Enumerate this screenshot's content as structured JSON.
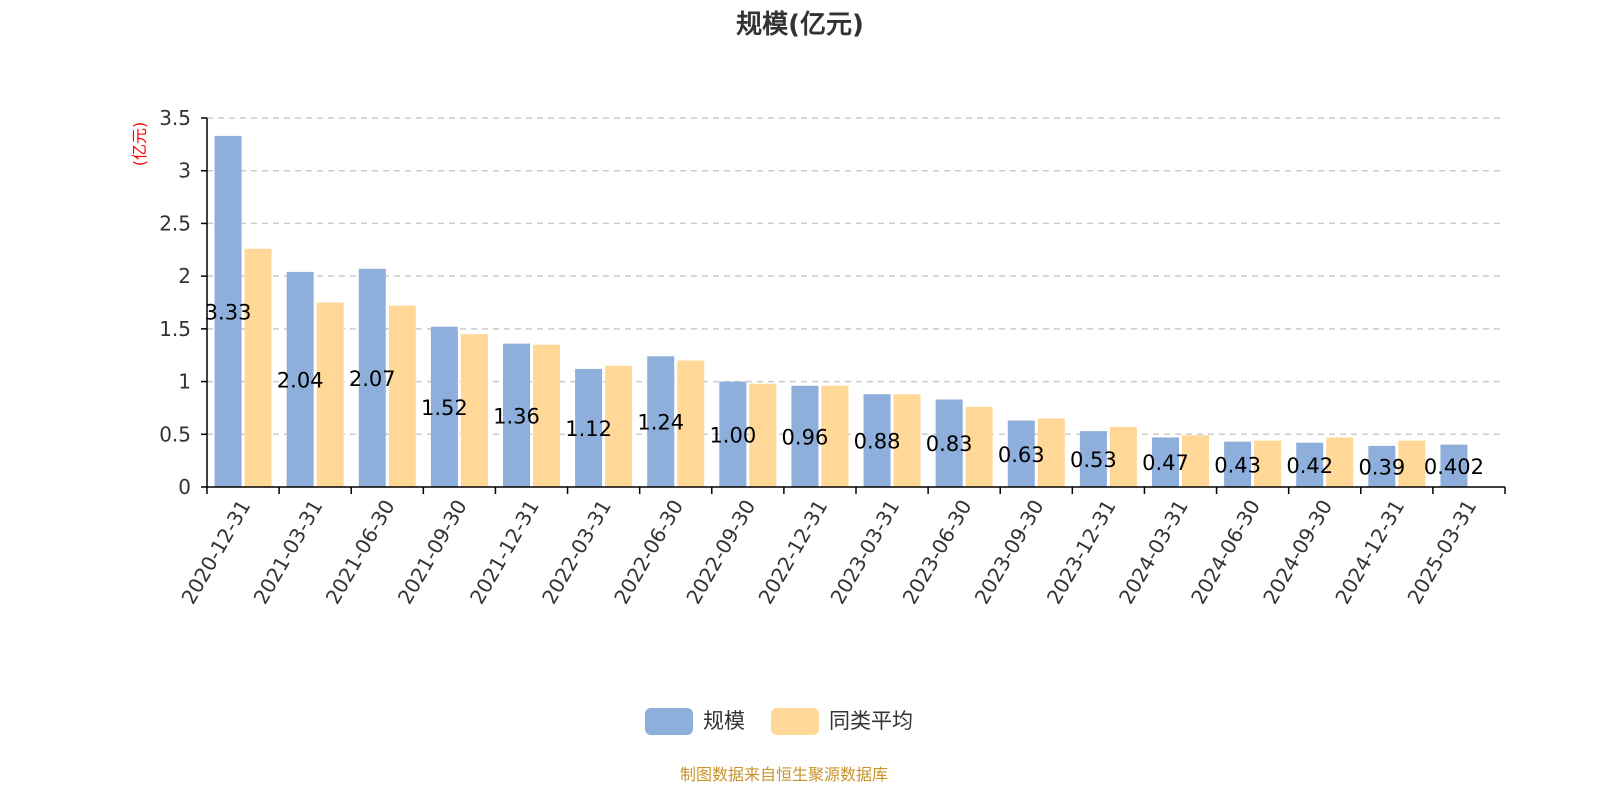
{
  "title": "规模(亿元)",
  "footer": "制图数据来自恒生聚源数据库",
  "colors": {
    "series_1": "#8eaedb",
    "series_2": "#ffd898",
    "unit": "#ff0000",
    "footer": "#c8942a"
  },
  "chart_data": {
    "type": "bar",
    "title": "规模(亿元)",
    "ylabel": "(亿元)",
    "xlabel": "",
    "ylim": [
      0,
      3.5
    ],
    "yticks": [
      0,
      0.5,
      1,
      1.5,
      2,
      2.5,
      3,
      3.5
    ],
    "ytick_labels": [
      "0",
      "0.5",
      "1",
      "1.5",
      "2",
      "2.5",
      "3",
      "3.5"
    ],
    "grid": true,
    "legend_position": "bottom-center",
    "categories": [
      "2020-12-31",
      "2021-03-31",
      "2021-06-30",
      "2021-09-30",
      "2021-12-31",
      "2022-03-31",
      "2022-06-30",
      "2022-09-30",
      "2022-12-31",
      "2023-03-31",
      "2023-06-30",
      "2023-09-30",
      "2023-12-31",
      "2024-03-31",
      "2024-06-30",
      "2024-09-30",
      "2024-12-31",
      "2025-03-31"
    ],
    "series": [
      {
        "name": "规模",
        "values": [
          3.33,
          2.04,
          2.07,
          1.52,
          1.36,
          1.12,
          1.24,
          1.0,
          0.96,
          0.88,
          0.83,
          0.63,
          0.53,
          0.47,
          0.43,
          0.42,
          0.39,
          0.402
        ],
        "labels": [
          "3.33",
          "2.04",
          "2.07",
          "1.52",
          "1.36",
          "1.12",
          "1.24",
          "1.00",
          "0.96",
          "0.88",
          "0.83",
          "0.63",
          "0.53",
          "0.47",
          "0.43",
          "0.42",
          "0.39",
          "0.402"
        ]
      },
      {
        "name": "同类平均",
        "values": [
          2.26,
          1.75,
          1.72,
          1.45,
          1.35,
          1.15,
          1.2,
          0.98,
          0.96,
          0.88,
          0.76,
          0.65,
          0.57,
          0.49,
          0.44,
          0.47,
          0.44,
          null
        ]
      }
    ]
  }
}
